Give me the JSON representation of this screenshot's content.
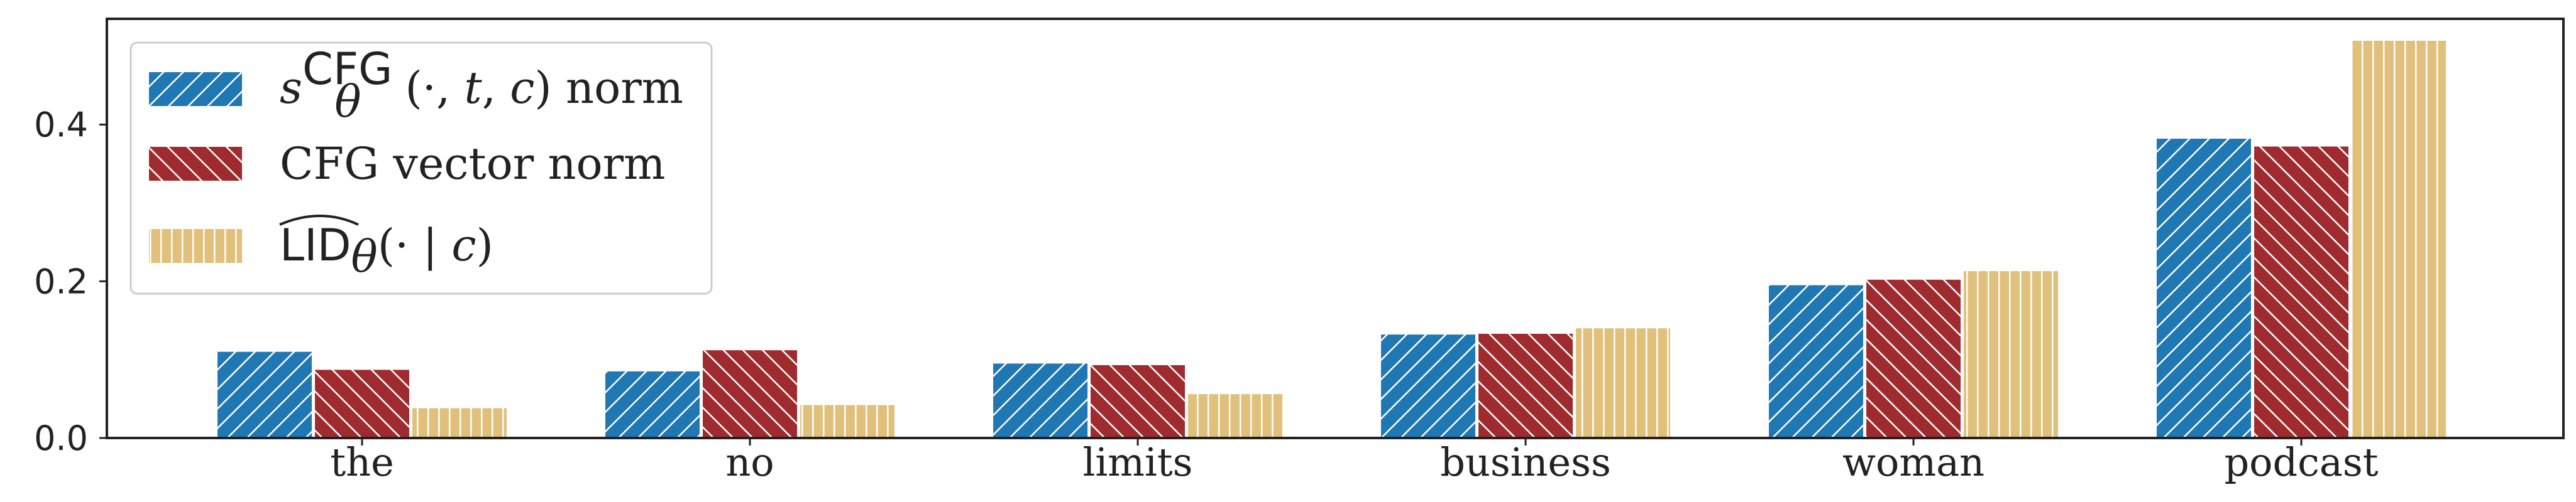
{
  "chart_data": {
    "type": "bar",
    "categories": [
      "the",
      "no",
      "limits",
      "business",
      "woman",
      "podcast"
    ],
    "series": [
      {
        "name": "s_θ^CFG(·, t, c) norm",
        "values": [
          0.11,
          0.085,
          0.095,
          0.132,
          0.195,
          0.382
        ],
        "color": "#1f77b4",
        "hatch": "diagonal-up"
      },
      {
        "name": "CFG vector norm",
        "values": [
          0.087,
          0.112,
          0.093,
          0.133,
          0.202,
          0.372
        ],
        "color": "#a02b2f",
        "hatch": "diagonal-down"
      },
      {
        "name": "LID_θ(· | c)",
        "values": [
          0.038,
          0.042,
          0.056,
          0.14,
          0.213,
          0.507
        ],
        "color": "#e0c07a",
        "hatch": "vertical"
      }
    ],
    "yticks": [
      "0.0",
      "0.2",
      "0.4"
    ],
    "ylim": [
      0,
      0.535
    ],
    "grid": false,
    "legend_position": "top-left"
  }
}
